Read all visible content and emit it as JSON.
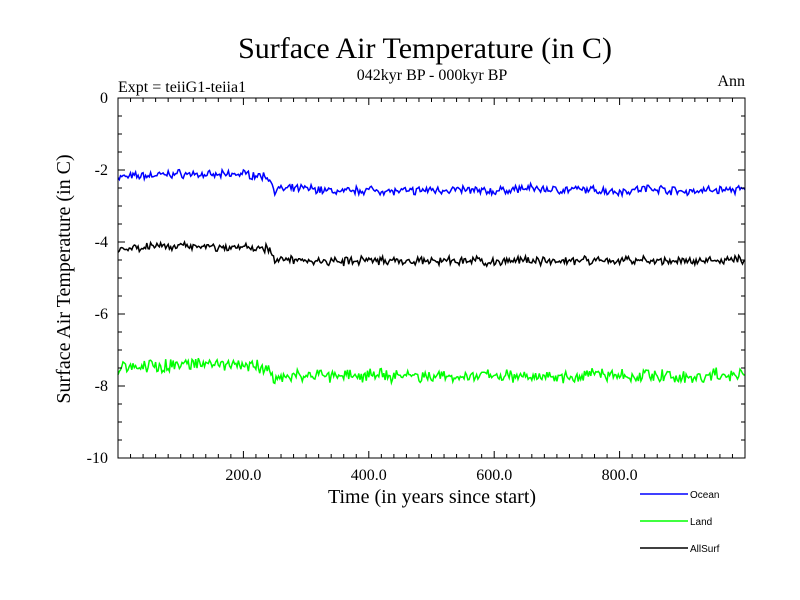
{
  "chart_data": {
    "type": "line",
    "title": "Surface Air Temperature (in C)",
    "subtitle": "042kyr BP - 000kyr BP",
    "left_note": "Expt = teiiG1-teiia1",
    "right_note": "Ann",
    "xlabel": "Time (in years since start)",
    "ylabel": "Surface Air Temperature (in C)",
    "xlim": [
      0,
      1000
    ],
    "ylim": [
      -10,
      0
    ],
    "xticks": [
      200,
      400,
      600,
      800
    ],
    "xtick_labels": [
      "200.0",
      "400.0",
      "600.0",
      "800.0"
    ],
    "yticks": [
      0,
      -2,
      -4,
      -6,
      -8,
      -10
    ],
    "ytick_labels": [
      "0",
      "-2",
      "-4",
      "-6",
      "-8",
      "-10"
    ],
    "grid": false,
    "legend": "bottom-right",
    "series": [
      {
        "name": "Ocean",
        "color": "#0000ff",
        "x": [
          0,
          50,
          100,
          150,
          200,
          240,
          250,
          300,
          350,
          400,
          450,
          500,
          550,
          600,
          650,
          700,
          750,
          800,
          850,
          900,
          950,
          1000
        ],
        "y": [
          -2.2,
          -2.15,
          -2.1,
          -2.15,
          -2.1,
          -2.2,
          -2.55,
          -2.5,
          -2.6,
          -2.55,
          -2.6,
          -2.55,
          -2.55,
          -2.6,
          -2.5,
          -2.55,
          -2.55,
          -2.6,
          -2.5,
          -2.6,
          -2.55,
          -2.55
        ]
      },
      {
        "name": "Land",
        "color": "#00ff00",
        "x": [
          0,
          50,
          100,
          150,
          200,
          240,
          250,
          300,
          350,
          400,
          450,
          500,
          550,
          600,
          650,
          700,
          750,
          800,
          850,
          900,
          950,
          1000
        ],
        "y": [
          -7.5,
          -7.45,
          -7.4,
          -7.4,
          -7.45,
          -7.5,
          -7.75,
          -7.7,
          -7.7,
          -7.7,
          -7.75,
          -7.7,
          -7.75,
          -7.7,
          -7.7,
          -7.75,
          -7.7,
          -7.75,
          -7.7,
          -7.75,
          -7.7,
          -7.7
        ]
      },
      {
        "name": "AllSurf",
        "color": "#000000",
        "x": [
          0,
          50,
          100,
          150,
          200,
          240,
          250,
          300,
          350,
          400,
          450,
          500,
          550,
          600,
          650,
          700,
          750,
          800,
          850,
          900,
          950,
          1000
        ],
        "y": [
          -4.2,
          -4.15,
          -4.1,
          -4.15,
          -4.15,
          -4.2,
          -4.5,
          -4.5,
          -4.55,
          -4.5,
          -4.55,
          -4.55,
          -4.5,
          -4.55,
          -4.5,
          -4.55,
          -4.5,
          -4.55,
          -4.5,
          -4.55,
          -4.5,
          -4.5
        ]
      }
    ]
  }
}
